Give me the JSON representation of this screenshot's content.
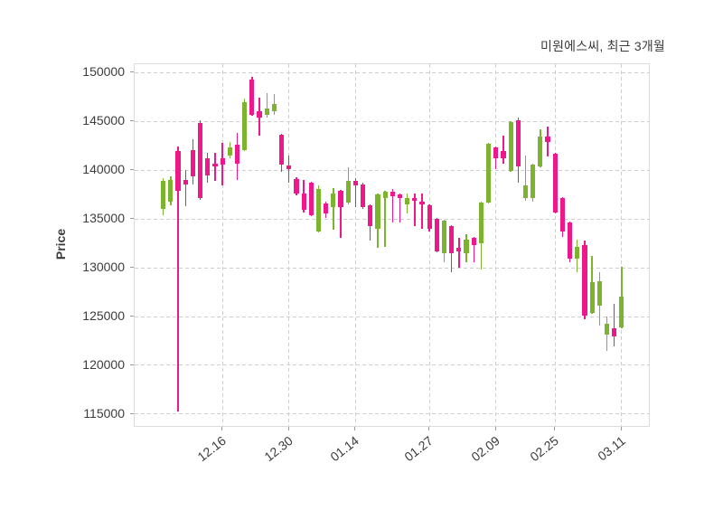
{
  "chart_data": {
    "type": "candlestick",
    "title": "미원에스씨, 최근 3개월",
    "ylabel": "Price",
    "ylim": [
      113600,
      150860
    ],
    "y_ticks": [
      150000,
      145000,
      140000,
      135000,
      130000,
      125000,
      120000,
      115000
    ],
    "x_ticks": [
      {
        "label": "12.16",
        "index": 8
      },
      {
        "label": "12.30",
        "index": 17
      },
      {
        "label": "01.14",
        "index": 26
      },
      {
        "label": "01.27",
        "index": 36
      },
      {
        "label": "02.09",
        "index": 45
      },
      {
        "label": "02.25",
        "index": 53
      },
      {
        "label": "03.11",
        "index": 62
      }
    ],
    "colors": {
      "up": "#7cb32f",
      "down": "#ee188d",
      "grid": "#cfcfcf",
      "border": "#dcdcdc",
      "text": "#3c3c3c",
      "tick": "#9a9a9a"
    },
    "candle_format": [
      "open",
      "high",
      "low",
      "close"
    ],
    "candles": [
      [
        136000,
        139200,
        135400,
        138900
      ],
      [
        136800,
        139400,
        136400,
        139000
      ],
      [
        142000,
        142400,
        115300,
        137900
      ],
      [
        139000,
        140000,
        136300,
        138500
      ],
      [
        142100,
        143200,
        138500,
        139400
      ],
      [
        144800,
        145100,
        137000,
        137100
      ],
      [
        141200,
        141800,
        138700,
        139500
      ],
      [
        140700,
        141800,
        138900,
        140400
      ],
      [
        141200,
        142800,
        138400,
        140600
      ],
      [
        141500,
        142900,
        141200,
        142300
      ],
      [
        142600,
        143800,
        139000,
        140700
      ],
      [
        142100,
        147300,
        142000,
        147000
      ],
      [
        149300,
        149600,
        145600,
        145700
      ],
      [
        146000,
        147400,
        143500,
        145400
      ],
      [
        145700,
        147900,
        145400,
        146300
      ],
      [
        146000,
        147800,
        145700,
        146800
      ],
      [
        143600,
        143700,
        139800,
        140600
      ],
      [
        140500,
        141500,
        138700,
        140100
      ],
      [
        139100,
        139300,
        137400,
        137600
      ],
      [
        137600,
        139000,
        135700,
        135900
      ],
      [
        138700,
        138800,
        135300,
        135400
      ],
      [
        133700,
        138400,
        133600,
        138100
      ],
      [
        136600,
        136800,
        135100,
        135600
      ],
      [
        136200,
        138200,
        133900,
        137600
      ],
      [
        137900,
        138000,
        133100,
        136200
      ],
      [
        136700,
        140300,
        136500,
        138900
      ],
      [
        138900,
        139200,
        136200,
        138400
      ],
      [
        138500,
        138700,
        136000,
        136200
      ],
      [
        136400,
        136500,
        132800,
        134300
      ],
      [
        134000,
        137600,
        132000,
        137500
      ],
      [
        137100,
        137900,
        132100,
        137800
      ],
      [
        137800,
        138100,
        134600,
        137300
      ],
      [
        137500,
        137600,
        134600,
        137100
      ],
      [
        136500,
        137600,
        135600,
        137100
      ],
      [
        137100,
        137600,
        134300,
        136900
      ],
      [
        136800,
        137600,
        134000,
        136500
      ],
      [
        136400,
        136500,
        133700,
        134000
      ],
      [
        135000,
        135100,
        131600,
        131700
      ],
      [
        131500,
        134900,
        130600,
        134800
      ],
      [
        134300,
        134400,
        129500,
        131500
      ],
      [
        132000,
        133100,
        130000,
        131700
      ],
      [
        131500,
        133400,
        130600,
        132900
      ],
      [
        133100,
        133200,
        130600,
        132300
      ],
      [
        132500,
        136800,
        129800,
        136700
      ],
      [
        136700,
        142800,
        136600,
        142700
      ],
      [
        142300,
        142400,
        140100,
        141200
      ],
      [
        142000,
        143500,
        140700,
        141200
      ],
      [
        139900,
        145000,
        139800,
        144900
      ],
      [
        145100,
        145400,
        138700,
        140400
      ],
      [
        137100,
        141500,
        136900,
        138400
      ],
      [
        137100,
        140700,
        136800,
        140600
      ],
      [
        140400,
        144200,
        140300,
        143400
      ],
      [
        143400,
        144500,
        141400,
        142900
      ],
      [
        141700,
        141800,
        135600,
        135700
      ],
      [
        137100,
        137200,
        133200,
        133700
      ],
      [
        134600,
        134700,
        130600,
        130900
      ],
      [
        130900,
        132900,
        129500,
        132100
      ],
      [
        132300,
        132800,
        124700,
        125100
      ],
      [
        125400,
        131200,
        125300,
        128500
      ],
      [
        126100,
        129500,
        124100,
        128600
      ],
      [
        123100,
        125000,
        121500,
        124300
      ],
      [
        123800,
        126300,
        121900,
        123000
      ],
      [
        123900,
        130100,
        123800,
        127000
      ]
    ]
  }
}
